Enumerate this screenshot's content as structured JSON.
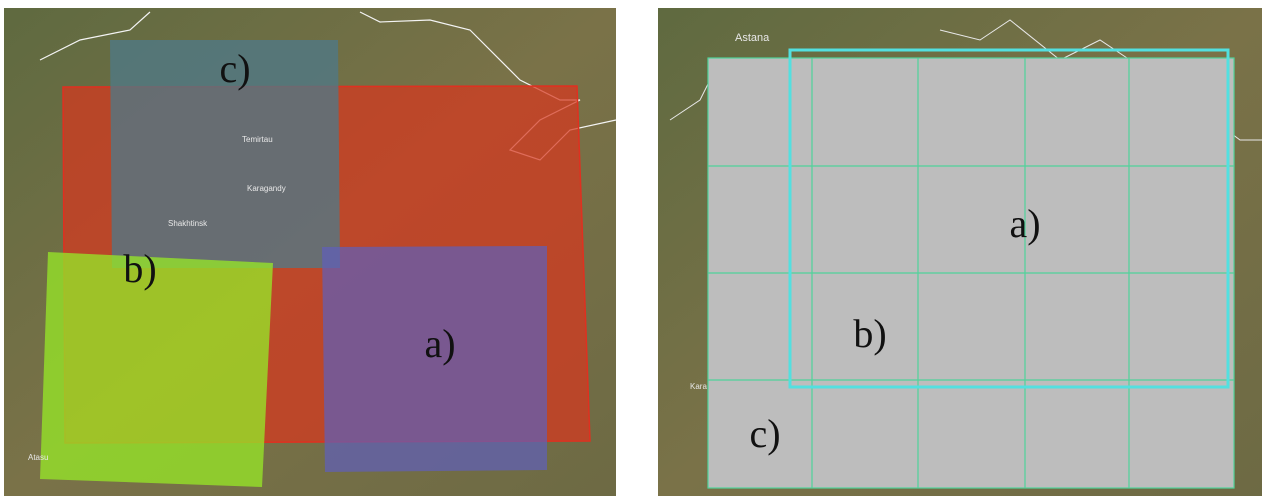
{
  "left_panel": {
    "labels": [
      "c)",
      "b)",
      "a)"
    ],
    "places": [
      "Temirtau",
      "Karagandy",
      "Shakhtinsk",
      "Atasu"
    ]
  },
  "right_panel": {
    "labels": [
      "a)",
      "b)",
      "c)"
    ],
    "places": [
      "Astana",
      "Kara"
    ]
  }
}
